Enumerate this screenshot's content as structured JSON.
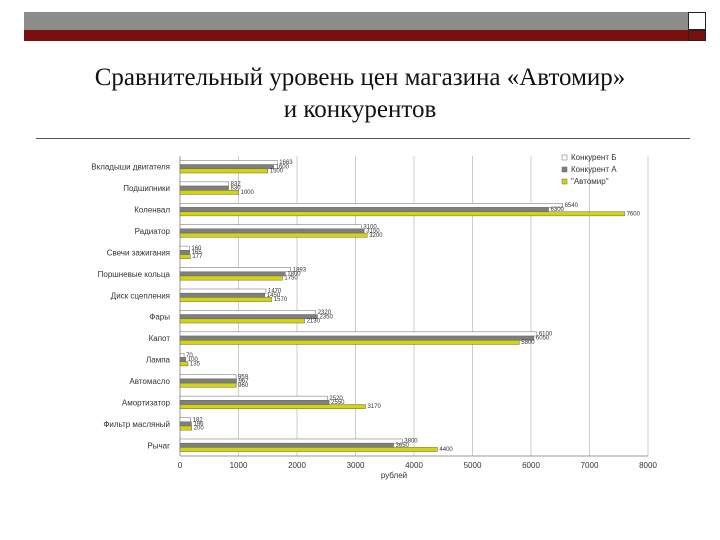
{
  "slide": {
    "title_line1": "Сравнительный уровень цен магазина «Автомир»",
    "title_line2": "и конкурентов",
    "colors": {
      "bar_top": "#8c8c8c",
      "bar_red": "#7a0f10"
    }
  },
  "chart_data": {
    "type": "bar",
    "orientation": "horizontal",
    "xlabel": "рублей",
    "xlim": [
      0,
      8000
    ],
    "xticks": [
      0,
      1000,
      2000,
      3000,
      4000,
      5000,
      6000,
      7000,
      8000
    ],
    "grid": true,
    "legend_position": "top-right",
    "categories": [
      "Вкладыши двигателя",
      "Подшипники",
      "Коленвал",
      "Радиатор",
      "Свечи зажигания",
      "Поршневые кольца",
      "Диск сцепления",
      "Фары",
      "Капот",
      "Лампа",
      "Автомасло",
      "Амортизатор",
      "Фильтр масляный",
      "Рычаг"
    ],
    "series": [
      {
        "name": "Конкурент Б",
        "color": "#ffffff",
        "values": [
          1663,
          832,
          6540,
          3100,
          160,
          1893,
          1470,
          2320,
          6100,
          70,
          959,
          2520,
          182,
          3800
        ]
      },
      {
        "name": "Конкурент А",
        "color": "#7f7f7f",
        "values": [
          1600,
          830,
          6300,
          3150,
          165,
          1800,
          1450,
          2350,
          6050,
          100,
          967,
          2550,
          196,
          3650
        ]
      },
      {
        "name": "\"Автомир\"",
        "color": "#d4d40a",
        "values": [
          1500,
          1000,
          7600,
          3200,
          177,
          1750,
          1570,
          2130,
          5800,
          135,
          960,
          3170,
          200,
          4400
        ]
      }
    ]
  }
}
